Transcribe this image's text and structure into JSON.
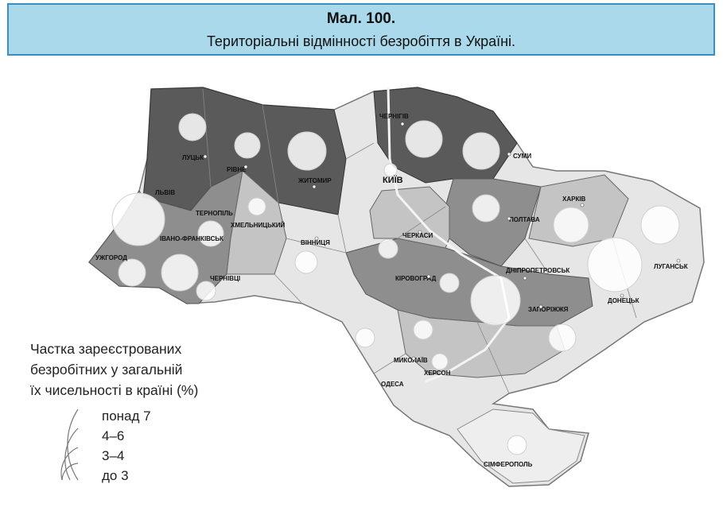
{
  "figure": {
    "number": "Мал. 100.",
    "title": "Територіальні відмінності безробіття в Україні."
  },
  "cities": {
    "lutsk": "ЛУЦЬК",
    "rivne": "РІВНЕ",
    "zhytomyr": "ЖИТОМИР",
    "chernihiv": "ЧЕРНІГІВ",
    "sumy": "СУМИ",
    "kyiv": "КИЇВ",
    "lviv": "ЛЬВІВ",
    "ternopil": "ТЕРНОПІЛЬ",
    "khmelnytskyi": "ХМЕЛЬНИЦЬКИЙ",
    "vinnytsia": "ВІННИЦЯ",
    "cherkasy": "ЧЕРКАСИ",
    "poltava": "ПОЛТАВА",
    "kharkiv": "ХАРКІВ",
    "luhansk": "ЛУГАНСЬК",
    "ivano_frankivsk": "ІВАНО-ФРАНКІВСЬК",
    "uzhhorod": "УЖГОРОД",
    "chernivtsi": "ЧЕРНІВЦІ",
    "kirovohrad": "КІРОВОГРАД",
    "dnipropetrovsk": "ДНІПРОПЕТРОВСЬК",
    "donetsk": "ДОНЕЦЬК",
    "zaporizhzhia": "ЗАПОРІЖЖЯ",
    "mykolaiv": "МИКОЛАЇВ",
    "kherson": "ХЕРСОН",
    "odesa": "ОДЕСА",
    "simferopol": "СІМФЕРОПОЛЬ"
  },
  "legend": {
    "title_lines": [
      "Частка зареєстрованих",
      "безробітних у загальній",
      "їх чисельності в країні (%)"
    ],
    "items": [
      "понад 7",
      "4–6",
      "3–4",
      "до 3"
    ]
  },
  "colors": {
    "header_bg": "#a9d9ea",
    "header_border": "#3b8fc0",
    "dark": "#5a5a5a",
    "mid": "#8e8e8e",
    "light": "#c4c4c4",
    "pale": "#e6e6e6"
  }
}
